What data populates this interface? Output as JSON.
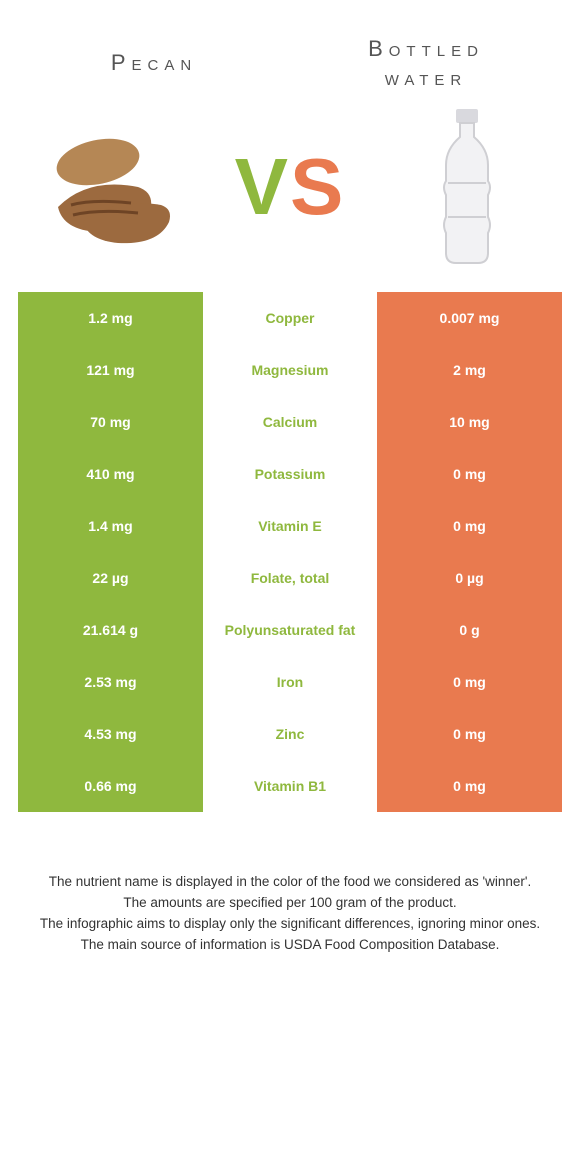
{
  "colors": {
    "left": "#8fb83e",
    "right": "#e97a4f",
    "left_text": "#ffffff",
    "right_text": "#ffffff",
    "mid_bg": "#ffffff"
  },
  "header": {
    "left_title": "Pecan",
    "right_title_line1": "Bottled",
    "right_title_line2": "water",
    "vs_v": "V",
    "vs_s": "S"
  },
  "rows": [
    {
      "left": "1.2 mg",
      "label": "Copper",
      "right": "0.007 mg",
      "winner": "left"
    },
    {
      "left": "121 mg",
      "label": "Magnesium",
      "right": "2 mg",
      "winner": "left"
    },
    {
      "left": "70 mg",
      "label": "Calcium",
      "right": "10 mg",
      "winner": "left"
    },
    {
      "left": "410 mg",
      "label": "Potassium",
      "right": "0 mg",
      "winner": "left"
    },
    {
      "left": "1.4 mg",
      "label": "Vitamin E",
      "right": "0 mg",
      "winner": "left"
    },
    {
      "left": "22 µg",
      "label": "Folate, total",
      "right": "0 µg",
      "winner": "left"
    },
    {
      "left": "21.614 g",
      "label": "Polyunsaturated fat",
      "right": "0 g",
      "winner": "left"
    },
    {
      "left": "2.53 mg",
      "label": "Iron",
      "right": "0 mg",
      "winner": "left"
    },
    {
      "left": "4.53 mg",
      "label": "Zinc",
      "right": "0 mg",
      "winner": "left"
    },
    {
      "left": "0.66 mg",
      "label": "Vitamin B1",
      "right": "0 mg",
      "winner": "left"
    }
  ],
  "footnotes": [
    "The nutrient name is displayed in the color of the food we considered as 'winner'.",
    "The amounts are specified per 100 gram of the product.",
    "The infographic aims to display only the significant differences, ignoring minor ones.",
    "The main source of information is USDA Food Composition Database."
  ]
}
